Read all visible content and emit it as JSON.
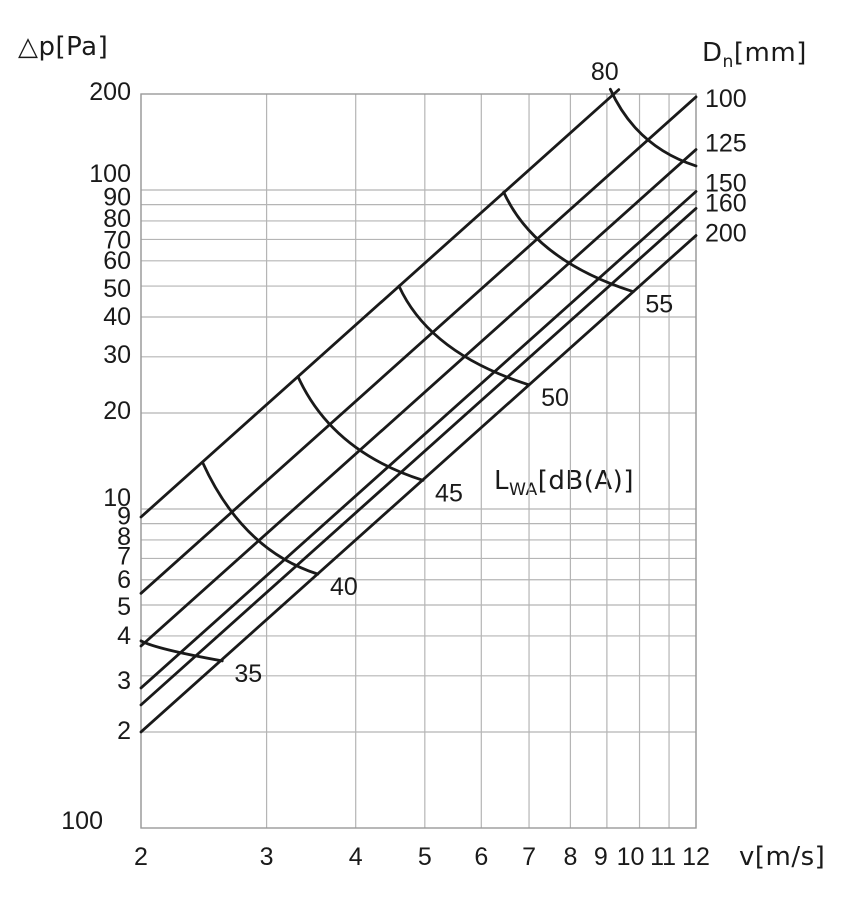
{
  "chart_data": {
    "type": "line",
    "description": "Log-log duct sizing chart: pressure drop vs air velocity with duct diameter lines (dp = coef_v2 * v^2) and sound power level curves",
    "x_axis": {
      "label": "v[m/s]",
      "scale": "log",
      "xlim": [
        2,
        12
      ],
      "ticks": [
        "2",
        "3",
        "4",
        "5",
        "6",
        "7",
        "8",
        "9",
        "10",
        "11",
        "12"
      ]
    },
    "y_axis": {
      "label": "△p[Pa]",
      "scale": "log",
      "ylim": [
        1,
        200
      ],
      "ticks": [
        "200",
        "100",
        "90",
        "80",
        "70",
        "60",
        "50",
        "40",
        "30",
        "20",
        "10",
        "9",
        "8",
        "7",
        "6",
        "5",
        "4",
        "3",
        "2"
      ],
      "bottom_tick_label": "100"
    },
    "grid": true,
    "diameter_axis": {
      "pre": "D",
      "sub": "n",
      "post": "[mm]"
    },
    "noise_axis": {
      "pre": "L",
      "sub": "WA",
      "post": "[dB(A)]"
    },
    "diameter_lines": [
      {
        "label": "80",
        "coef_v2": 2.36,
        "label_position": "top"
      },
      {
        "label": "100",
        "coef_v2": 1.36,
        "label_position": "right"
      },
      {
        "label": "125",
        "coef_v2": 0.93,
        "label_position": "right"
      },
      {
        "label": "150",
        "coef_v2": 0.687,
        "label_position": "right"
      },
      {
        "label": "160",
        "coef_v2": 0.608,
        "label_position": "right"
      },
      {
        "label": "200",
        "coef_v2": 0.5,
        "label_position": "right"
      }
    ],
    "noise_curves": [
      {
        "label": "35",
        "start": {
          "v": 2.0,
          "dp": 3.86
        },
        "end": {
          "v": 2.6,
          "dp": 3.34
        }
      },
      {
        "label": "40",
        "start": {
          "v": 2.44,
          "dp": 14.0
        },
        "end": {
          "v": 3.54,
          "dp": 6.25
        }
      },
      {
        "label": "45",
        "start": {
          "v": 3.32,
          "dp": 26.0
        },
        "end": {
          "v": 4.97,
          "dp": 12.3
        }
      },
      {
        "label": "50",
        "start": {
          "v": 4.6,
          "dp": 50.0
        },
        "end": {
          "v": 7.0,
          "dp": 24.5
        }
      },
      {
        "label": "55",
        "start": {
          "v": 6.45,
          "dp": 98.5
        },
        "end": {
          "v": 9.8,
          "dp": 48.0
        }
      },
      {
        "label": "",
        "start": {
          "v": 9.1,
          "dp": 207.0
        },
        "end": {
          "v": 12.0,
          "dp": 119.0
        }
      }
    ]
  },
  "colors": {
    "line": "#1a1a1a",
    "grid": "#b5b5b5",
    "border": "#9a9a9a",
    "background": "#ffffff",
    "text": "#1a1a1a"
  }
}
